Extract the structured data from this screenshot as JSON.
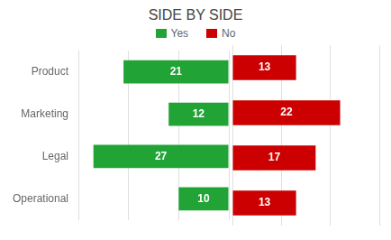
{
  "chart_data": {
    "type": "bar",
    "orientation": "horizontal",
    "title": "SIDE BY SIDE",
    "categories": [
      "Operational",
      "Legal",
      "Marketing",
      "Product"
    ],
    "series": [
      {
        "name": "Yes",
        "color": "#21A336",
        "values": [
          10,
          27,
          12,
          21
        ]
      },
      {
        "name": "No",
        "color": "#CC0000",
        "values": [
          13,
          17,
          22,
          13
        ]
      }
    ],
    "xlim": [
      0,
      30
    ],
    "xticks": [
      0,
      10,
      20,
      30
    ],
    "grid": true,
    "legend": "top",
    "data_labels": true,
    "tick_labels": "y"
  }
}
